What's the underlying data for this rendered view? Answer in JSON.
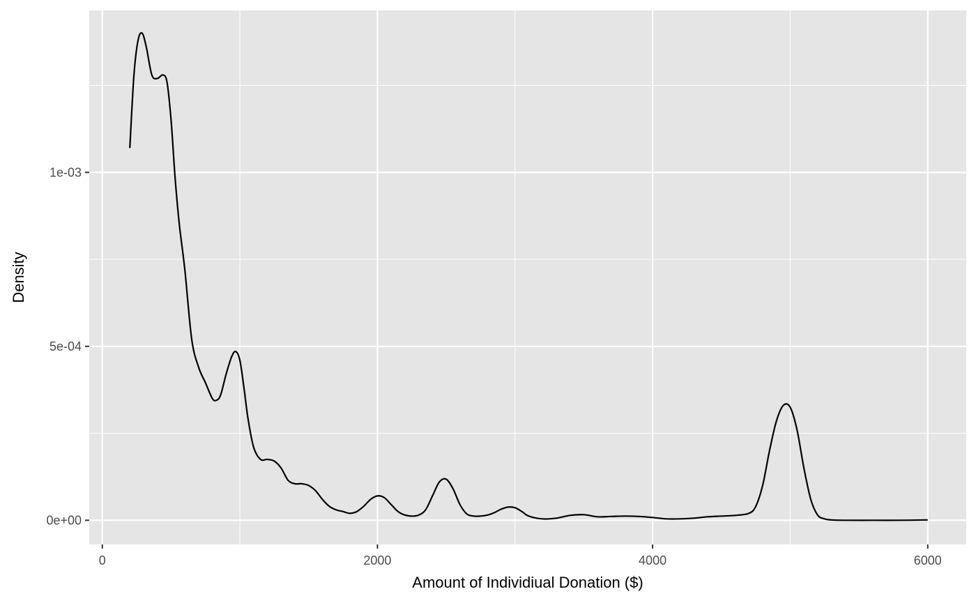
{
  "chart_data": {
    "type": "line",
    "title": "",
    "xlabel": "Amount of Individiual Donation ($)",
    "ylabel": "Density",
    "xlim": [
      -95,
      6280
    ],
    "ylim": [
      -6.95e-05,
      0.0014655
    ],
    "x_ticks": [
      0,
      2000,
      4000,
      6000
    ],
    "x_tick_labels": [
      "0",
      "2000",
      "4000",
      "6000"
    ],
    "y_ticks": [
      0,
      0.0005,
      0.001
    ],
    "y_tick_labels": [
      "0e+00",
      "5e-04",
      "1e-03"
    ],
    "grid": true,
    "legend": "none",
    "colors": {
      "panel_background": "#e5e5e5",
      "grid": "#ffffff",
      "line": "#000000",
      "tick_label": "#4d4d4d"
    },
    "series": [
      {
        "x": [
          200,
          230,
          260,
          290,
          320,
          360,
          400,
          440,
          470,
          500,
          530,
          560,
          600,
          650,
          700,
          750,
          800,
          830,
          860,
          900,
          940,
          970,
          1000,
          1030,
          1060,
          1100,
          1150,
          1200,
          1250,
          1300,
          1350,
          1400,
          1450,
          1500,
          1550,
          1600,
          1650,
          1700,
          1750,
          1800,
          1850,
          1900,
          1950,
          2000,
          2050,
          2100,
          2150,
          2200,
          2250,
          2300,
          2350,
          2400,
          2450,
          2500,
          2550,
          2600,
          2650,
          2700,
          2750,
          2800,
          2850,
          2900,
          2950,
          3000,
          3050,
          3100,
          3200,
          3300,
          3400,
          3500,
          3600,
          3700,
          3800,
          3900,
          4000,
          4100,
          4200,
          4300,
          4400,
          4500,
          4600,
          4700,
          4750,
          4800,
          4850,
          4900,
          4950,
          5000,
          5050,
          5100,
          5150,
          5200,
          5250,
          5300,
          5400,
          5600,
          5800,
          6000
        ],
        "y": [
          0.00107,
          0.00128,
          0.00138,
          0.0014,
          0.00136,
          0.00128,
          0.00127,
          0.00128,
          0.00126,
          0.00115,
          0.00098,
          0.00085,
          0.00072,
          0.00052,
          0.00044,
          0.000395,
          0.00035,
          0.000345,
          0.00036,
          0.00042,
          0.00047,
          0.000485,
          0.00046,
          0.00038,
          0.00029,
          0.00021,
          0.000175,
          0.000175,
          0.00017,
          0.00015,
          0.000115,
          0.000105,
          0.000105,
          0.0001,
          8.5e-05,
          6e-05,
          4e-05,
          3e-05,
          2.5e-05,
          2e-05,
          2.5e-05,
          4e-05,
          6e-05,
          7e-05,
          6.5e-05,
          4.5e-05,
          2.5e-05,
          1.5e-05,
          1.2e-05,
          1.5e-05,
          3e-05,
          7e-05,
          0.00011,
          0.000118,
          9e-05,
          4.5e-05,
          1.8e-05,
          1.2e-05,
          1.2e-05,
          1.5e-05,
          2.2e-05,
          3.2e-05,
          3.8e-05,
          3.6e-05,
          2.5e-05,
          1.2e-05,
          4e-06,
          6e-06,
          1.4e-05,
          1.6e-05,
          1e-05,
          1.1e-05,
          1.2e-05,
          1.1e-05,
          8e-06,
          4e-06,
          4e-06,
          6e-06,
          1e-05,
          1.2e-05,
          1.4e-05,
          2e-05,
          4e-05,
          0.0001,
          0.0002,
          0.000285,
          0.00033,
          0.000325,
          0.00026,
          0.00015,
          6e-05,
          1.5e-05,
          4e-06,
          1e-06,
          0,
          0,
          0,
          1e-06
        ]
      }
    ]
  }
}
